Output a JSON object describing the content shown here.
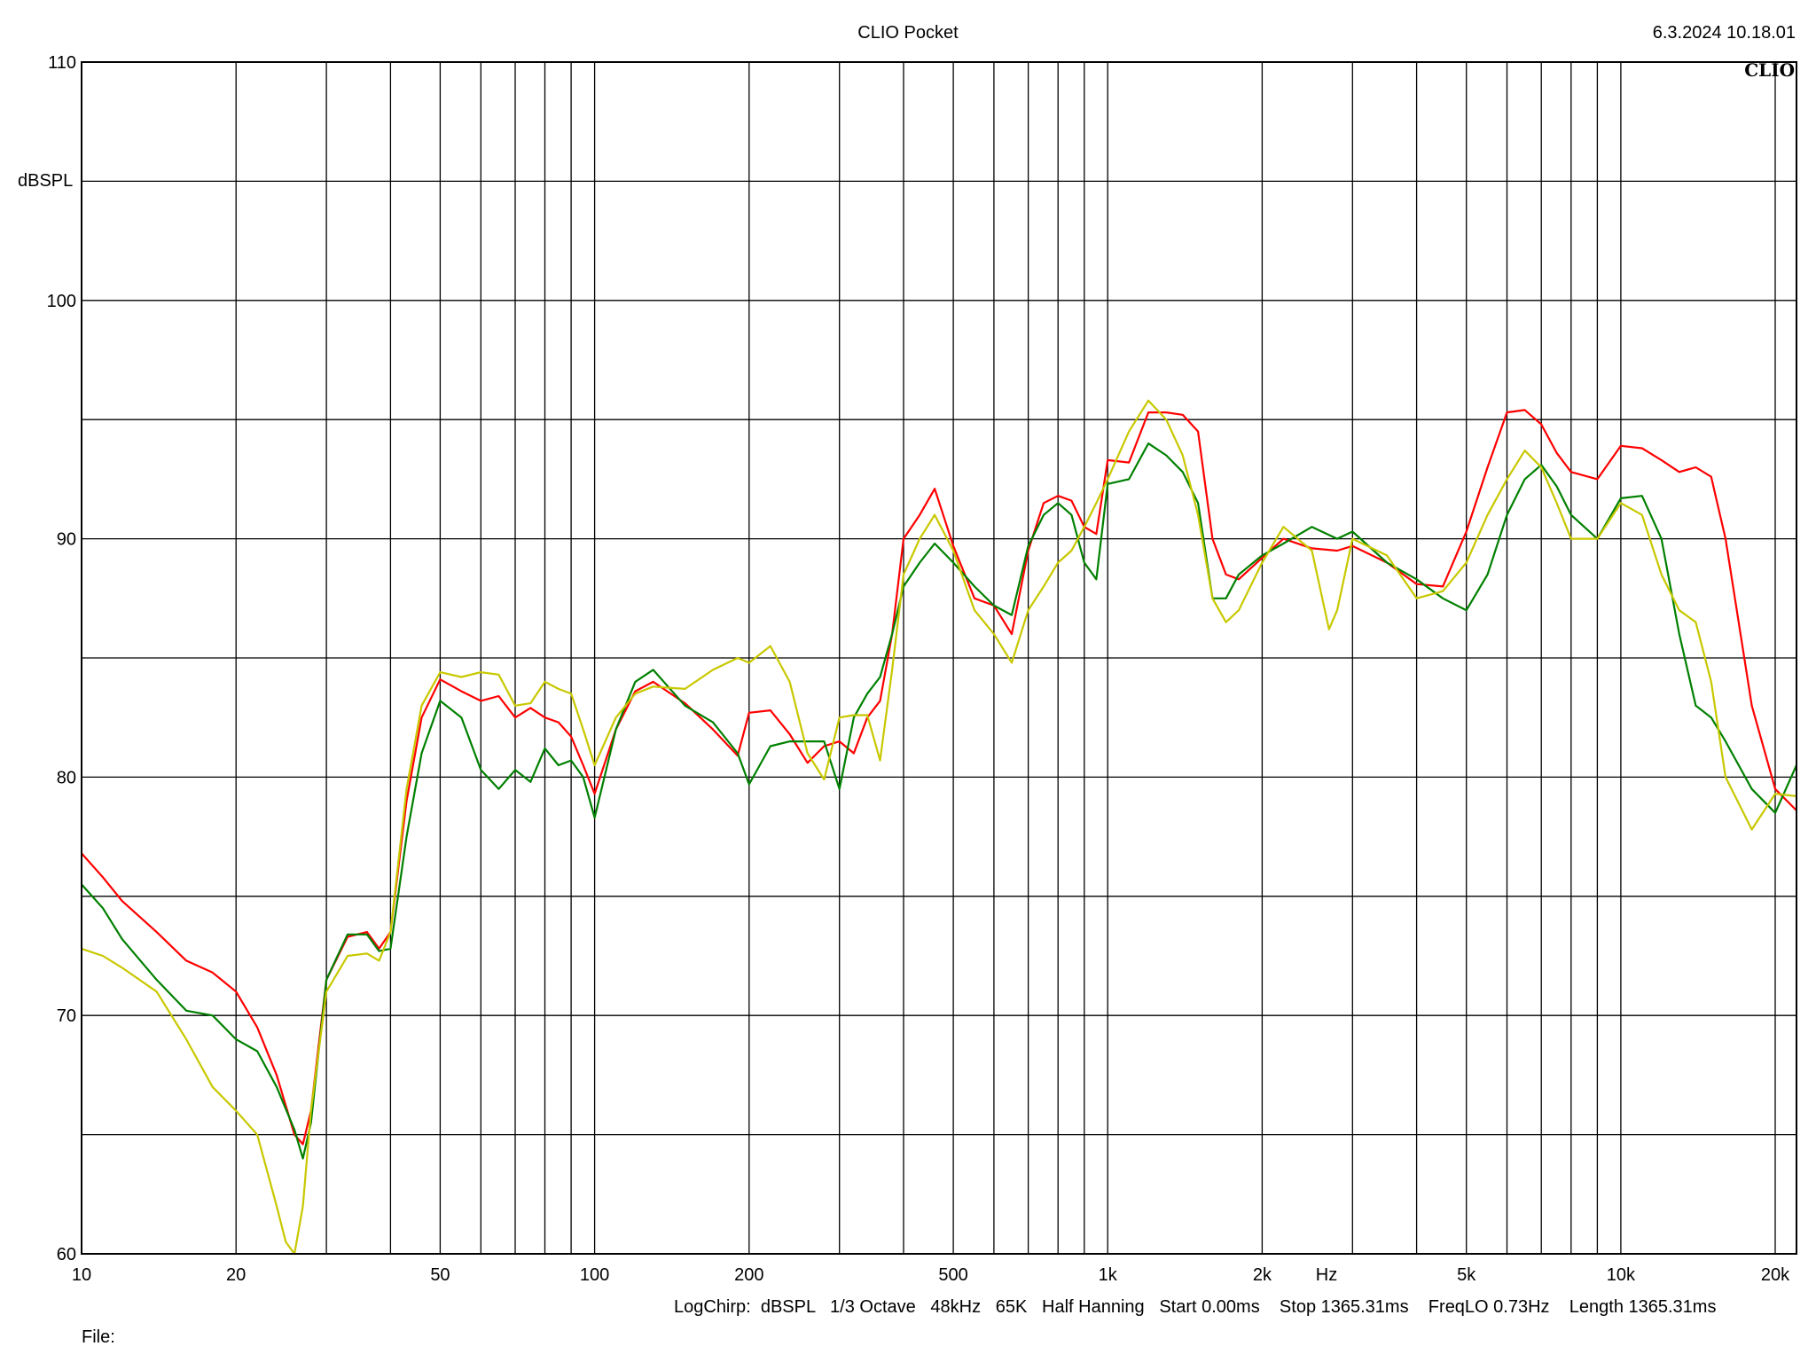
{
  "header": {
    "app_title": "CLIO Pocket",
    "timestamp": "6.3.2024 10.18.01",
    "logo": "CLIO"
  },
  "footer": {
    "settings": "LogChirp:  dBSPL   1/3 Octave   48kHz   65K   Half Hanning   Start 0.00ms    Stop 1365.31ms    FreqLO 0.73Hz    Length 1365.31ms",
    "file_label": "File:"
  },
  "chart_data": {
    "type": "line",
    "title": "CLIO Pocket",
    "xlabel": "Hz",
    "ylabel": "dBSPL",
    "x_scale": "log",
    "xlim": [
      10,
      22000
    ],
    "ylim": [
      60,
      110
    ],
    "grid": true,
    "x_ticks": [
      {
        "value": 10,
        "label": "10"
      },
      {
        "value": 20,
        "label": "20"
      },
      {
        "value": 50,
        "label": "50"
      },
      {
        "value": 100,
        "label": "100"
      },
      {
        "value": 200,
        "label": "200"
      },
      {
        "value": 500,
        "label": "500"
      },
      {
        "value": 1000,
        "label": "1k"
      },
      {
        "value": 2000,
        "label": "2k"
      },
      {
        "value": 5000,
        "label": "5k"
      },
      {
        "value": 10000,
        "label": "10k"
      },
      {
        "value": 20000,
        "label": "20k"
      }
    ],
    "x_grid": [
      20,
      30,
      40,
      50,
      60,
      70,
      80,
      90,
      100,
      200,
      300,
      400,
      500,
      600,
      700,
      800,
      900,
      1000,
      2000,
      3000,
      4000,
      5000,
      6000,
      7000,
      8000,
      9000,
      10000,
      20000
    ],
    "y_ticks": [
      {
        "value": 60,
        "label": "60"
      },
      {
        "value": 70,
        "label": "70"
      },
      {
        "value": 80,
        "label": "80"
      },
      {
        "value": 90,
        "label": "90"
      },
      {
        "value": 100,
        "label": "100"
      },
      {
        "value": 110,
        "label": "110"
      }
    ],
    "y_grid": [
      65,
      70,
      75,
      80,
      85,
      90,
      95,
      100,
      105
    ],
    "series": [
      {
        "color": "#ff0000",
        "x": [
          10,
          11,
          12,
          14,
          16,
          18,
          20,
          22,
          24,
          26,
          27,
          28,
          30,
          33,
          36,
          38,
          40,
          43,
          46,
          50,
          55,
          60,
          65,
          70,
          75,
          80,
          85,
          90,
          95,
          100,
          110,
          120,
          130,
          150,
          170,
          190,
          200,
          220,
          240,
          260,
          280,
          300,
          320,
          340,
          360,
          380,
          400,
          430,
          460,
          500,
          550,
          600,
          650,
          700,
          750,
          800,
          850,
          900,
          950,
          1000,
          1100,
          1200,
          1300,
          1400,
          1500,
          1600,
          1700,
          1800,
          2000,
          2200,
          2500,
          2800,
          3000,
          3500,
          4000,
          4500,
          5000,
          5500,
          6000,
          6500,
          7000,
          7500,
          8000,
          9000,
          10000,
          11000,
          12000,
          13000,
          14000,
          15000,
          16000,
          18000,
          20000,
          22000
        ],
        "y": [
          76.8,
          75.8,
          74.8,
          73.5,
          72.3,
          71.8,
          71.0,
          69.5,
          67.5,
          65.0,
          64.6,
          66.0,
          71.5,
          73.3,
          73.5,
          72.8,
          73.5,
          79.0,
          82.5,
          84.1,
          83.6,
          83.2,
          83.4,
          82.5,
          82.9,
          82.5,
          82.3,
          81.7,
          80.5,
          79.3,
          82.0,
          83.6,
          84.0,
          83.1,
          82.0,
          80.9,
          82.7,
          82.8,
          81.8,
          80.6,
          81.3,
          81.5,
          81.0,
          82.5,
          83.2,
          86.0,
          90.0,
          91.0,
          92.1,
          89.7,
          87.5,
          87.2,
          86.0,
          89.5,
          91.5,
          91.8,
          91.6,
          90.5,
          90.2,
          93.3,
          93.2,
          95.3,
          95.3,
          95.2,
          94.5,
          90.0,
          88.5,
          88.3,
          89.2,
          90.0,
          89.6,
          89.5,
          89.7,
          89.0,
          88.1,
          88.0,
          90.3,
          93.0,
          95.3,
          95.4,
          94.8,
          93.6,
          92.8,
          92.5,
          93.9,
          93.8,
          93.3,
          92.8,
          93.0,
          92.6,
          90.0,
          83.0,
          79.5,
          78.6
        ]
      },
      {
        "color": "#008000",
        "x": [
          10,
          11,
          12,
          14,
          16,
          18,
          20,
          22,
          24,
          26,
          27,
          28,
          30,
          33,
          36,
          38,
          40,
          43,
          46,
          50,
          55,
          60,
          65,
          70,
          75,
          80,
          85,
          90,
          95,
          100,
          110,
          120,
          130,
          150,
          170,
          190,
          200,
          220,
          240,
          260,
          280,
          300,
          320,
          340,
          360,
          380,
          400,
          430,
          460,
          500,
          550,
          600,
          650,
          700,
          750,
          800,
          850,
          900,
          950,
          1000,
          1100,
          1200,
          1300,
          1400,
          1500,
          1600,
          1700,
          1800,
          2000,
          2200,
          2500,
          2800,
          3000,
          3500,
          4000,
          4500,
          5000,
          5500,
          6000,
          6500,
          7000,
          7500,
          8000,
          9000,
          10000,
          11000,
          12000,
          13000,
          14000,
          15000,
          16000,
          18000,
          20000,
          22000
        ],
        "y": [
          75.5,
          74.5,
          73.2,
          71.5,
          70.2,
          70.0,
          69.0,
          68.5,
          67.0,
          65.2,
          64.0,
          65.5,
          71.5,
          73.4,
          73.4,
          72.7,
          72.8,
          77.5,
          81.0,
          83.2,
          82.5,
          80.3,
          79.5,
          80.3,
          79.8,
          81.2,
          80.5,
          80.7,
          80.0,
          78.3,
          82.0,
          84.0,
          84.5,
          83.0,
          82.3,
          81.0,
          79.7,
          81.3,
          81.5,
          81.5,
          81.5,
          79.5,
          82.5,
          83.5,
          84.2,
          86.0,
          88.0,
          89.0,
          89.8,
          89.0,
          88.0,
          87.2,
          86.8,
          89.7,
          91.0,
          91.5,
          91.0,
          89.0,
          88.3,
          92.3,
          92.5,
          94.0,
          93.5,
          92.8,
          91.5,
          87.5,
          87.5,
          88.5,
          89.3,
          89.8,
          90.5,
          90.0,
          90.3,
          89.0,
          88.3,
          87.5,
          87.0,
          88.5,
          91.0,
          92.5,
          93.1,
          92.2,
          91.0,
          90.0,
          91.7,
          91.8,
          90.0,
          86.0,
          83.0,
          82.5,
          81.5,
          79.5,
          78.5,
          80.5
        ]
      },
      {
        "color": "#c8c800",
        "x": [
          10,
          11,
          12,
          14,
          16,
          18,
          20,
          22,
          24,
          25,
          26,
          27,
          28,
          30,
          33,
          36,
          38,
          40,
          43,
          46,
          50,
          55,
          60,
          65,
          70,
          75,
          80,
          85,
          90,
          95,
          100,
          110,
          120,
          130,
          150,
          170,
          190,
          200,
          220,
          240,
          260,
          280,
          300,
          320,
          340,
          360,
          380,
          400,
          430,
          460,
          500,
          550,
          600,
          650,
          700,
          750,
          800,
          850,
          900,
          950,
          1000,
          1100,
          1200,
          1300,
          1400,
          1500,
          1600,
          1700,
          1800,
          2000,
          2200,
          2500,
          2700,
          2800,
          3000,
          3500,
          4000,
          4500,
          5000,
          5500,
          6000,
          6500,
          7000,
          7500,
          8000,
          9000,
          10000,
          11000,
          12000,
          13000,
          14000,
          15000,
          16000,
          18000,
          20000,
          22000
        ],
        "y": [
          72.8,
          72.5,
          72.0,
          71.0,
          69.0,
          67.0,
          66.0,
          65.0,
          62.0,
          60.5,
          60.0,
          62.0,
          66.0,
          71.0,
          72.5,
          72.6,
          72.3,
          73.5,
          79.5,
          83.0,
          84.4,
          84.2,
          84.4,
          84.3,
          83.0,
          83.1,
          84.0,
          83.7,
          83.5,
          82.0,
          80.5,
          82.5,
          83.5,
          83.8,
          83.7,
          84.5,
          85.0,
          84.8,
          85.5,
          84.0,
          81.0,
          79.9,
          82.5,
          82.6,
          82.6,
          80.7,
          84.5,
          88.5,
          90.0,
          91.0,
          89.5,
          87.0,
          86.0,
          84.8,
          87.0,
          88.0,
          89.0,
          89.5,
          90.5,
          91.5,
          92.5,
          94.5,
          95.8,
          95.0,
          93.5,
          91.0,
          87.5,
          86.5,
          87.0,
          89.0,
          90.5,
          89.5,
          86.2,
          87.0,
          90.0,
          89.3,
          87.5,
          87.8,
          89.0,
          91.0,
          92.5,
          93.7,
          93.0,
          91.5,
          90.0,
          90.0,
          91.5,
          91.0,
          88.5,
          87.0,
          86.5,
          84.0,
          80.0,
          77.8,
          79.3,
          79.2
        ]
      }
    ]
  }
}
